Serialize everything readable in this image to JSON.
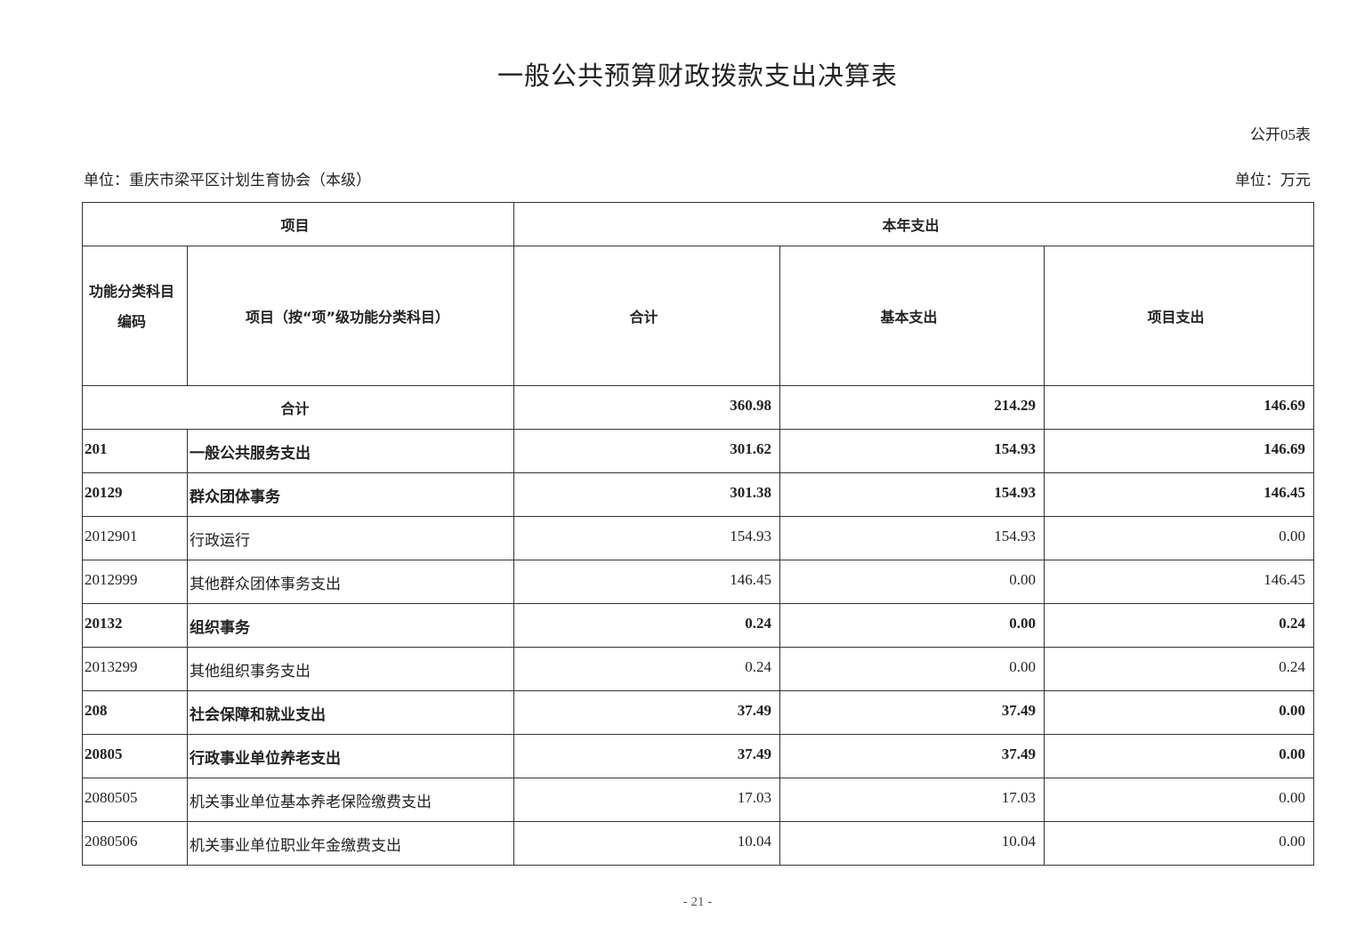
{
  "title": "一般公共预算财政拨款支出决算表",
  "table_no": "公开05表",
  "unit_org": "单位：重庆市梁平区计划生育协会（本级）",
  "unit_currency": "单位：万元",
  "headers": {
    "item": "项目",
    "current_year": "本年支出",
    "code": "功能分类科目编码",
    "code_line1": "功能分类科目",
    "code_line2": "编码",
    "item_name": "项目（按“项”级功能分类科目）",
    "total": "合计",
    "basic": "基本支出",
    "project": "项目支出"
  },
  "total_row": {
    "label": "合计",
    "total": "360.98",
    "basic": "214.29",
    "project": "146.69"
  },
  "rows": [
    {
      "code": "201",
      "name": "一般公共服务支出",
      "total": "301.62",
      "basic": "154.93",
      "project": "146.69",
      "bold": true
    },
    {
      "code": "20129",
      "name": "群众团体事务",
      "total": "301.38",
      "basic": "154.93",
      "project": "146.45",
      "bold": true
    },
    {
      "code": "2012901",
      "name": "行政运行",
      "total": "154.93",
      "basic": "154.93",
      "project": "0.00",
      "bold": false
    },
    {
      "code": "2012999",
      "name": "其他群众团体事务支出",
      "total": "146.45",
      "basic": "0.00",
      "project": "146.45",
      "bold": false
    },
    {
      "code": "20132",
      "name": "组织事务",
      "total": "0.24",
      "basic": "0.00",
      "project": "0.24",
      "bold": true
    },
    {
      "code": "2013299",
      "name": "其他组织事务支出",
      "total": "0.24",
      "basic": "0.00",
      "project": "0.24",
      "bold": false
    },
    {
      "code": "208",
      "name": "社会保障和就业支出",
      "total": "37.49",
      "basic": "37.49",
      "project": "0.00",
      "bold": true
    },
    {
      "code": "20805",
      "name": "行政事业单位养老支出",
      "total": "37.49",
      "basic": "37.49",
      "project": "0.00",
      "bold": true
    },
    {
      "code": "2080505",
      "name": "机关事业单位基本养老保险缴费支出",
      "total": "17.03",
      "basic": "17.03",
      "project": "0.00",
      "bold": false
    },
    {
      "code": "2080506",
      "name": "机关事业单位职业年金缴费支出",
      "total": "10.04",
      "basic": "10.04",
      "project": "0.00",
      "bold": false
    }
  ],
  "page_number": "- 21 -"
}
